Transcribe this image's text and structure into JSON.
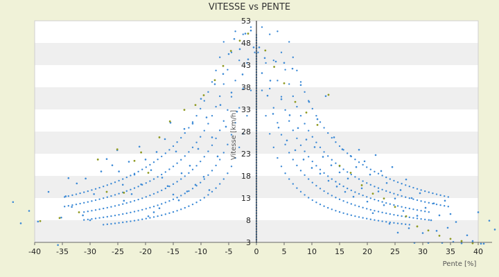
{
  "chart_data": {
    "type": "scatter",
    "title": "VITESSE vs PENTE",
    "xlabel": "Pente [%]",
    "ylabel": "Vitesse [km/h]",
    "xlim": [
      -40,
      40
    ],
    "ylim": [
      3,
      53
    ],
    "x_ticks": [
      -40,
      -35,
      -30,
      -25,
      -20,
      -15,
      -10,
      -5,
      0,
      5,
      10,
      15,
      20,
      25,
      30,
      35,
      40
    ],
    "y_ticks": [
      3,
      8,
      13,
      18,
      23,
      28,
      33,
      38,
      43,
      48,
      53
    ],
    "grid": "horizontal bands",
    "legend": "none",
    "colors": {
      "background": "#f0f2d8",
      "plot_band_a": "#ffffff",
      "plot_band_b": "#efefef",
      "series_primary": "#3d8ad6",
      "series_secondary": "#8f9a22"
    },
    "series": [
      {
        "points": [
          [
            -43.9,
            12.1
          ],
          [
            -42.5,
            7.3
          ],
          [
            -41.0,
            10.1
          ],
          [
            -39.4,
            7.7
          ],
          [
            -37.5,
            14.4
          ],
          [
            -35.8,
            2.4
          ],
          [
            -35.2,
            8.6
          ],
          [
            -34.4,
            13.4
          ],
          [
            -33.9,
            17.5
          ],
          [
            -33.3,
            11.0
          ],
          [
            -32.4,
            16.3
          ],
          [
            -31.3,
            9.1
          ],
          [
            -30.8,
            17.4
          ],
          [
            -30.0,
            8.0
          ],
          [
            -29.3,
            13.9
          ],
          [
            -28.0,
            19.0
          ],
          [
            -27.0,
            21.8
          ],
          [
            -26.0,
            20.4
          ],
          [
            -25.1,
            23.8
          ],
          [
            -24.8,
            19.0
          ],
          [
            -24.1,
            16.0
          ],
          [
            -23.9,
            12.4
          ],
          [
            -23.0,
            21.2
          ],
          [
            -22.5,
            13.9
          ],
          [
            -22.0,
            18.3
          ],
          [
            -21.1,
            24.6
          ],
          [
            -20.8,
            16.1
          ],
          [
            -20.0,
            21.7
          ],
          [
            -19.5,
            8.9
          ],
          [
            -19.0,
            19.3
          ],
          [
            -18.5,
            9.8
          ],
          [
            -18.0,
            23.4
          ],
          [
            -17.5,
            10.7
          ],
          [
            -17.0,
            17.6
          ],
          [
            -16.5,
            26.3
          ],
          [
            -16.0,
            15.7
          ],
          [
            -15.5,
            30.0
          ],
          [
            -15.0,
            13.8
          ],
          [
            -14.5,
            23.5
          ],
          [
            -14.0,
            12.5
          ],
          [
            -13.5,
            18.6
          ],
          [
            -13.0,
            28.6
          ],
          [
            -12.5,
            14.5
          ],
          [
            -12.0,
            20.3
          ],
          [
            -11.5,
            29.8
          ],
          [
            -11.0,
            16.0
          ],
          [
            -10.5,
            24.1
          ],
          [
            -10.0,
            35.4
          ],
          [
            -9.5,
            17.8
          ],
          [
            -9.0,
            31.2
          ],
          [
            -8.5,
            14.8
          ],
          [
            -8.0,
            26.7
          ],
          [
            -7.5,
            38.7
          ],
          [
            -7.0,
            22.4
          ],
          [
            -6.5,
            34.0
          ],
          [
            -6.0,
            41.0
          ],
          [
            -5.5,
            29.1
          ],
          [
            -5.0,
            45.5
          ],
          [
            -4.5,
            36.8
          ],
          [
            -4.0,
            48.9
          ],
          [
            -3.5,
            32.5
          ],
          [
            -3.0,
            46.6
          ],
          [
            -2.5,
            40.9
          ],
          [
            -2.0,
            50.1
          ],
          [
            -1.5,
            44.3
          ],
          [
            -1.0,
            50.8
          ],
          [
            -0.5,
            47.0
          ],
          [
            0.5,
            47.0
          ],
          [
            1.0,
            41.2
          ],
          [
            1.5,
            44.6
          ],
          [
            2.0,
            36.1
          ],
          [
            2.5,
            39.5
          ],
          [
            3.0,
            32.0
          ],
          [
            3.5,
            43.8
          ],
          [
            4.0,
            28.9
          ],
          [
            4.5,
            35.3
          ],
          [
            5.0,
            43.5
          ],
          [
            5.5,
            26.0
          ],
          [
            6.0,
            31.7
          ],
          [
            6.5,
            42.2
          ],
          [
            7.0,
            23.8
          ],
          [
            7.5,
            28.8
          ],
          [
            8.0,
            38.5
          ],
          [
            8.5,
            21.7
          ],
          [
            9.0,
            26.2
          ],
          [
            9.5,
            34.7
          ],
          [
            10.0,
            19.8
          ],
          [
            10.5,
            24.5
          ],
          [
            11.0,
            30.8
          ],
          [
            11.5,
            18.5
          ],
          [
            12.0,
            22.3
          ],
          [
            12.5,
            36.0
          ],
          [
            13.0,
            16.9
          ],
          [
            13.5,
            20.4
          ],
          [
            14.0,
            26.7
          ],
          [
            14.5,
            15.6
          ],
          [
            15.0,
            18.8
          ],
          [
            15.5,
            24.0
          ],
          [
            16.0,
            14.4
          ],
          [
            16.5,
            17.4
          ],
          [
            17.0,
            22.5
          ],
          [
            17.5,
            13.3
          ],
          [
            18.0,
            20.0
          ],
          [
            18.5,
            23.9
          ],
          [
            19.0,
            15.2
          ],
          [
            19.5,
            21.3
          ],
          [
            20.0,
            12.2
          ],
          [
            20.5,
            18.3
          ],
          [
            21.0,
            9.6
          ],
          [
            21.5,
            22.7
          ],
          [
            22.0,
            14.5
          ],
          [
            22.5,
            19.1
          ],
          [
            23.0,
            11.4
          ],
          [
            23.5,
            16.4
          ],
          [
            24.0,
            7.2
          ],
          [
            24.5,
            20.0
          ],
          [
            25.0,
            12.9
          ],
          [
            25.5,
            5.2
          ],
          [
            26.0,
            14.8
          ],
          [
            26.5,
            10.1
          ],
          [
            27.0,
            17.2
          ],
          [
            27.5,
            6.2
          ],
          [
            28.0,
            13.0
          ],
          [
            28.5,
            2.9
          ],
          [
            29.0,
            9.0
          ],
          [
            29.5,
            14.1
          ],
          [
            30.0,
            5.1
          ],
          [
            30.5,
            10.8
          ],
          [
            31.0,
            2.9
          ],
          [
            31.5,
            8.0
          ],
          [
            32.0,
            11.8
          ],
          [
            32.5,
            5.6
          ],
          [
            33.0,
            9.1
          ],
          [
            33.5,
            2.9
          ],
          [
            34.0,
            12.4
          ],
          [
            34.5,
            6.3
          ],
          [
            35.0,
            9.4
          ],
          [
            35.5,
            3.1
          ],
          [
            36.0,
            7.6
          ],
          [
            37.0,
            2.8
          ],
          [
            38.0,
            4.6
          ],
          [
            39.0,
            3.3
          ],
          [
            40.0,
            9.8
          ],
          [
            40.5,
            2.7
          ],
          [
            41.0,
            2.7
          ],
          [
            42.0,
            7.9
          ],
          [
            43.0,
            5.9
          ]
        ]
      },
      {
        "points": [
          [
            -39.0,
            7.8
          ],
          [
            -35.5,
            8.5
          ],
          [
            -32.0,
            9.8
          ],
          [
            -28.6,
            21.7
          ],
          [
            -27.0,
            14.4
          ],
          [
            -25.1,
            24.0
          ],
          [
            -23.9,
            14.2
          ],
          [
            -22.0,
            21.4
          ],
          [
            -20.8,
            23.3
          ],
          [
            -19.5,
            18.7
          ],
          [
            -17.5,
            26.7
          ],
          [
            -15.6,
            30.3
          ],
          [
            -13.0,
            32.9
          ],
          [
            -11.0,
            34.0
          ],
          [
            -9.5,
            36.2
          ],
          [
            -7.5,
            39.6
          ],
          [
            -6.0,
            42.8
          ],
          [
            -4.6,
            46.2
          ],
          [
            -3.0,
            48.5
          ],
          [
            -1.5,
            50.1
          ],
          [
            1.6,
            46.3
          ],
          [
            3.2,
            42.6
          ],
          [
            5.0,
            38.9
          ],
          [
            7.0,
            34.7
          ],
          [
            9.0,
            32.3
          ],
          [
            11.0,
            29.5
          ],
          [
            13.0,
            36.3
          ],
          [
            15.0,
            20.3
          ],
          [
            17.0,
            18.7
          ],
          [
            19.0,
            15.9
          ],
          [
            21.0,
            14.0
          ],
          [
            23.0,
            12.9
          ],
          [
            25.0,
            11.0
          ],
          [
            27.0,
            8.9
          ],
          [
            29.0,
            6.6
          ],
          [
            31.0,
            5.7
          ],
          [
            33.0,
            4.5
          ],
          [
            35.0,
            3.8
          ],
          [
            37.0,
            3.3
          ],
          [
            39.0,
            2.8
          ]
        ]
      }
    ],
    "curve_families": [
      {
        "k": 120,
        "count": 40
      },
      {
        "k": 170,
        "count": 45
      },
      {
        "k": 230,
        "count": 45
      },
      {
        "k": 300,
        "count": 50
      },
      {
        "k": 380,
        "count": 50
      }
    ]
  }
}
